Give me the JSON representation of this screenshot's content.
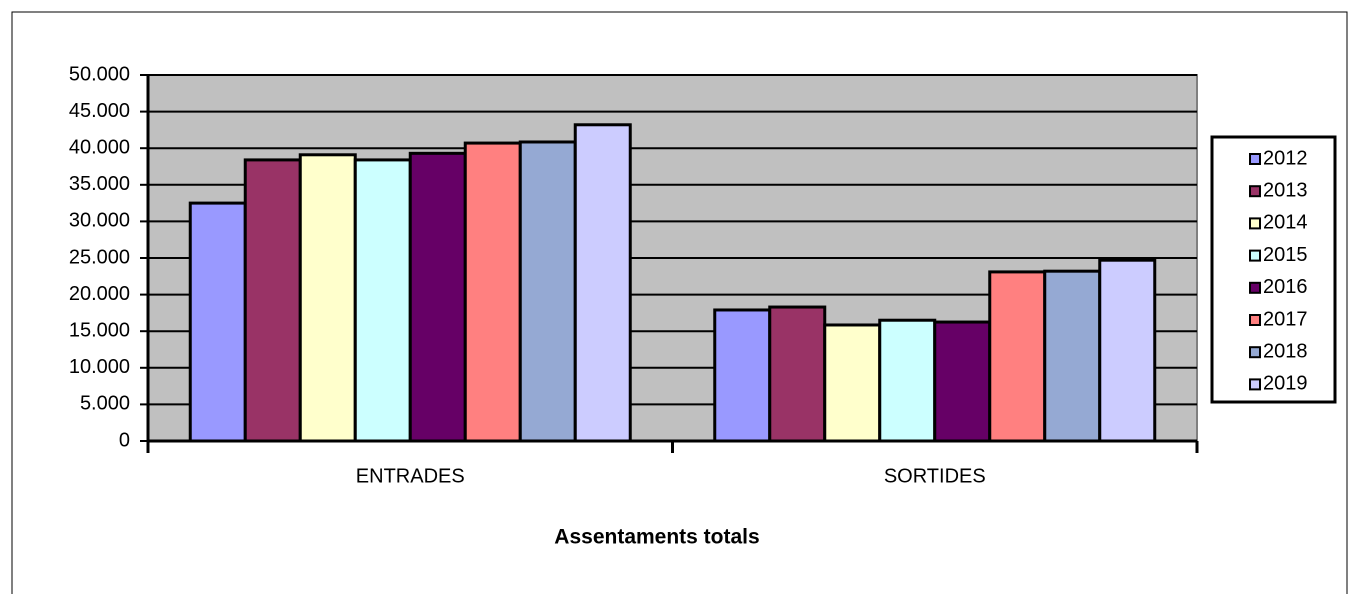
{
  "chart_data": {
    "type": "bar",
    "xlabel": "Assentaments totals",
    "categories": [
      "ENTRADES",
      "SORTIDES"
    ],
    "series": [
      {
        "name": "2012",
        "color": "#9999ff",
        "values": [
          32500,
          17900
        ]
      },
      {
        "name": "2013",
        "color": "#993366",
        "values": [
          38400,
          18300
        ]
      },
      {
        "name": "2014",
        "color": "#ffffcc",
        "values": [
          39100,
          15850
        ]
      },
      {
        "name": "2015",
        "color": "#ccffff",
        "values": [
          38400,
          16500
        ]
      },
      {
        "name": "2016",
        "color": "#660066",
        "values": [
          39300,
          16250
        ]
      },
      {
        "name": "2017",
        "color": "#ff8080",
        "values": [
          40700,
          23100
        ]
      },
      {
        "name": "2018",
        "color": "#95a9d3",
        "values": [
          40850,
          23200
        ]
      },
      {
        "name": "2019",
        "color": "#ccccff",
        "values": [
          43200,
          24700
        ]
      }
    ],
    "ylim": [
      0,
      50000
    ],
    "yticks": [
      0,
      {
        "value": 5000,
        "label": "5.000"
      },
      {
        "value": 10000,
        "label": "10.000"
      },
      {
        "value": 15000,
        "label": "15.000"
      },
      {
        "value": 20000,
        "label": "20.000"
      },
      {
        "value": 25000,
        "label": "25.000"
      },
      {
        "value": 30000,
        "label": "30.000"
      },
      {
        "value": 35000,
        "label": "35.000"
      },
      {
        "value": 40000,
        "label": "40.000"
      },
      {
        "value": 45000,
        "label": "45.000"
      },
      {
        "value": 50000,
        "label": "50.000"
      }
    ],
    "grid": true,
    "legend": "right",
    "plot_background": "#c0c0c0"
  }
}
